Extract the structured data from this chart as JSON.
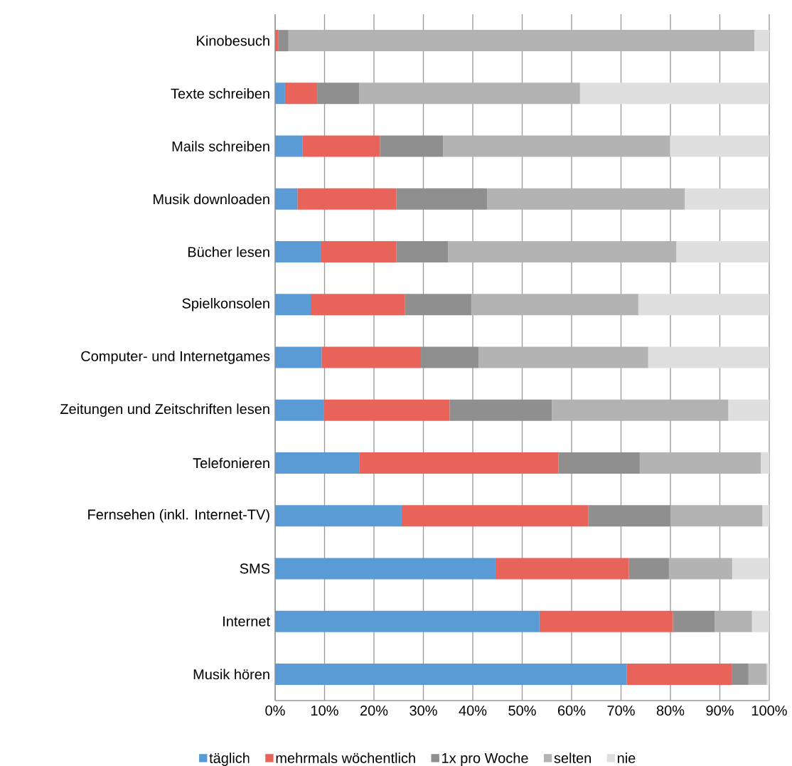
{
  "chart_data": {
    "type": "bar",
    "orientation": "horizontal",
    "stacked": true,
    "categories": [
      "Kinobesuch",
      "Texte schreiben",
      "Mails schreiben",
      "Musik downloaden",
      "Bücher lesen",
      "Spielkonsolen",
      "Computer- und Internetgames",
      "Zeitungen und Zeitschriften lesen",
      "Telefonieren",
      "Fernsehen (inkl. Internet-TV)",
      "SMS",
      "Internet",
      "Musik hören"
    ],
    "series": [
      {
        "name": "täglich",
        "color": "#5b9bd5",
        "values": [
          0,
          2.0,
          5.5,
          4.5,
          9.2,
          7.2,
          9.4,
          9.8,
          17.0,
          25.6,
          44.6,
          53.5,
          71.2
        ]
      },
      {
        "name": "mehrmals wöchentlich",
        "color": "#e8635a",
        "values": [
          0.6,
          6.5,
          15.7,
          20.0,
          15.3,
          19.1,
          20.1,
          25.5,
          40.3,
          37.8,
          27.0,
          27.0,
          21.3
        ]
      },
      {
        "name": "1x pro Woche",
        "color": "#8f8f8f",
        "values": [
          2.1,
          8.5,
          12.8,
          18.4,
          10.5,
          13.4,
          11.7,
          20.7,
          16.5,
          16.6,
          8.1,
          8.5,
          3.3
        ]
      },
      {
        "name": "selten",
        "color": "#b3b3b3",
        "values": [
          94.3,
          44.7,
          45.9,
          40.0,
          46.2,
          33.8,
          34.3,
          35.7,
          24.5,
          18.6,
          12.8,
          7.5,
          3.7
        ]
      },
      {
        "name": "nie",
        "color": "#dfdfdf",
        "values": [
          3.0,
          38.3,
          20.1,
          17.1,
          18.8,
          26.5,
          24.5,
          8.3,
          1.7,
          1.4,
          7.5,
          3.5,
          0.5
        ]
      }
    ],
    "xlim": [
      0,
      100
    ],
    "xticks": [
      {
        "value": 0,
        "label": "0%"
      },
      {
        "value": 10,
        "label": "10%"
      },
      {
        "value": 20,
        "label": "20%"
      },
      {
        "value": 30,
        "label": "30%"
      },
      {
        "value": 40,
        "label": "40%"
      },
      {
        "value": 50,
        "label": "50%"
      },
      {
        "value": 60,
        "label": "60%"
      },
      {
        "value": 70,
        "label": "70%"
      },
      {
        "value": 80,
        "label": "80%"
      },
      {
        "value": 90,
        "label": "90%"
      },
      {
        "value": 100,
        "label": "100%"
      }
    ],
    "grid": "x",
    "legend": "bottom"
  }
}
